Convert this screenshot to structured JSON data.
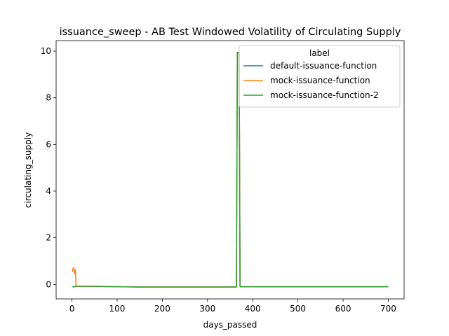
{
  "chart_data": {
    "type": "line",
    "title": "issuance_sweep - AB Test Windowed Volatility of Circulating Supply",
    "xlabel": "days_passed",
    "ylabel": "circulating_supply",
    "xlim": [
      -35,
      735
    ],
    "ylim": [
      -0.62,
      10.45
    ],
    "xticks": [
      0,
      100,
      200,
      300,
      400,
      500,
      600,
      700
    ],
    "yticks": [
      0,
      2,
      4,
      6,
      8,
      10
    ],
    "grid": false,
    "legend": {
      "title": "label",
      "placement": "top-right"
    },
    "series": [
      {
        "name": "default-issuance-function",
        "color": "#1f77b4",
        "x": [
          1,
          3,
          5,
          7,
          9,
          50,
          100,
          150,
          200,
          300,
          364,
          366,
          370,
          372,
          400,
          500,
          600,
          700
        ],
        "y": [
          -0.1,
          -0.1,
          -0.1,
          -0.1,
          -0.08,
          -0.08,
          -0.1,
          -0.11,
          -0.11,
          -0.11,
          -0.11,
          9.95,
          9.92,
          -0.1,
          -0.1,
          -0.1,
          -0.1,
          -0.1
        ]
      },
      {
        "name": "mock-issuance-function",
        "color": "#ff7f0e",
        "x": [
          1,
          2,
          3,
          4,
          5,
          6,
          7,
          8,
          9,
          50,
          100,
          150,
          200,
          300,
          364,
          366,
          370,
          372,
          400,
          500,
          600,
          700
        ],
        "y": [
          0.55,
          0.65,
          0.7,
          0.72,
          0.6,
          0.45,
          0.62,
          0.55,
          -0.08,
          -0.08,
          -0.1,
          -0.11,
          -0.11,
          -0.11,
          -0.11,
          9.95,
          9.92,
          -0.1,
          -0.1,
          -0.1,
          -0.1,
          -0.1
        ]
      },
      {
        "name": "mock-issuance-function-2",
        "color": "#2ca02c",
        "x": [
          1,
          3,
          5,
          7,
          9,
          50,
          100,
          150,
          200,
          300,
          364,
          366,
          370,
          372,
          400,
          500,
          600,
          700
        ],
        "y": [
          -0.1,
          -0.1,
          -0.1,
          -0.1,
          -0.08,
          -0.08,
          -0.1,
          -0.11,
          -0.11,
          -0.11,
          -0.11,
          9.95,
          9.92,
          -0.1,
          -0.1,
          -0.1,
          -0.1,
          -0.1
        ]
      }
    ]
  }
}
